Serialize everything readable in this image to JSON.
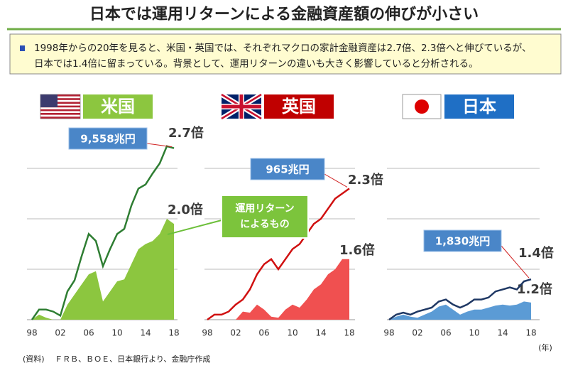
{
  "title": "日本では運用リターンによる金融資産額の伸びが小さい",
  "summary": [
    "1998年からの20年を見ると、米国・英国では、それぞれマクロの家計金融資産は2.7倍、2.3倍へと伸びているが、",
    "日本では1.4倍に留まっている。背景として、運用リターンの違いも大きく影響していると分析される。"
  ],
  "callout": [
    "運用リターン",
    "によるもの"
  ],
  "x_unit": "(年)",
  "source": "(資料)　 ＦＲＢ、ＢＯＥ、日本銀行より、金融庁作成",
  "chart_data": [
    {
      "type": "line",
      "label": "米国",
      "label_color": "#8cc63f",
      "total_label": "9,558兆円",
      "categories": [
        "98",
        null,
        null,
        null,
        "02",
        null,
        null,
        null,
        "06",
        null,
        null,
        null,
        "10",
        null,
        null,
        null,
        "14",
        null,
        null,
        null,
        "18"
      ],
      "ylim": [
        1,
        3
      ],
      "grid": [
        1.5,
        2,
        2.5
      ],
      "series": [
        {
          "style": "area",
          "color": "#8cc63f",
          "end_label": "2.0倍",
          "values": [
            1.0,
            1.05,
            1.02,
            1.0,
            1.0,
            1.15,
            1.25,
            1.35,
            1.45,
            1.48,
            1.18,
            1.28,
            1.38,
            1.4,
            1.55,
            1.7,
            1.75,
            1.78,
            1.85,
            2.0,
            1.95
          ]
        },
        {
          "style": "line",
          "color": "#2e7d32",
          "end_label": "2.7倍",
          "values": [
            1.0,
            1.1,
            1.1,
            1.08,
            1.04,
            1.28,
            1.39,
            1.63,
            1.85,
            1.78,
            1.53,
            1.7,
            1.85,
            1.9,
            2.13,
            2.3,
            2.34,
            2.45,
            2.55,
            2.72,
            2.7
          ]
        }
      ]
    },
    {
      "type": "line",
      "label": "英国",
      "label_color": "#c00000",
      "total_label": "965兆円",
      "categories": [
        "98",
        null,
        null,
        null,
        "02",
        null,
        null,
        null,
        "06",
        null,
        null,
        null,
        "10",
        null,
        null,
        null,
        "14",
        null,
        null,
        null,
        "18"
      ],
      "ylim": [
        1,
        3
      ],
      "grid": [
        1.5,
        2,
        2.5
      ],
      "series": [
        {
          "style": "area",
          "color": "#f05050",
          "end_label": "1.6倍",
          "values": [
            1.0,
            1.0,
            1.0,
            1.0,
            1.0,
            1.08,
            1.07,
            1.15,
            1.1,
            1.03,
            1.02,
            1.1,
            1.15,
            1.12,
            1.2,
            1.3,
            1.35,
            1.45,
            1.5,
            1.6,
            1.6
          ]
        },
        {
          "style": "line",
          "color": "#d01010",
          "end_label": "2.3倍",
          "values": [
            1.0,
            1.05,
            1.05,
            1.08,
            1.15,
            1.2,
            1.3,
            1.45,
            1.55,
            1.6,
            1.5,
            1.6,
            1.7,
            1.75,
            1.85,
            1.95,
            2.0,
            2.1,
            2.2,
            2.25,
            2.3
          ]
        }
      ]
    },
    {
      "type": "line",
      "label": "日本",
      "label_color": "#1f6fc5",
      "total_label": "1,830兆円",
      "categories": [
        "98",
        null,
        null,
        null,
        "02",
        null,
        null,
        null,
        "06",
        null,
        null,
        null,
        "10",
        null,
        null,
        null,
        "14",
        null,
        null,
        null,
        "18"
      ],
      "ylim": [
        1,
        3
      ],
      "grid": [
        1.5,
        2,
        2.5
      ],
      "series": [
        {
          "style": "area",
          "color": "#5b9bd5",
          "end_label": "1.2倍",
          "values": [
            1.0,
            1.03,
            1.05,
            1.03,
            1.02,
            1.05,
            1.08,
            1.13,
            1.15,
            1.1,
            1.05,
            1.08,
            1.1,
            1.1,
            1.12,
            1.14,
            1.15,
            1.14,
            1.15,
            1.18,
            1.17
          ]
        },
        {
          "style": "line",
          "color": "#1f3864",
          "end_label": "1.4倍",
          "values": [
            1.0,
            1.05,
            1.07,
            1.05,
            1.08,
            1.1,
            1.12,
            1.18,
            1.2,
            1.15,
            1.12,
            1.15,
            1.2,
            1.2,
            1.22,
            1.28,
            1.3,
            1.32,
            1.3,
            1.38,
            1.4
          ]
        }
      ]
    }
  ]
}
